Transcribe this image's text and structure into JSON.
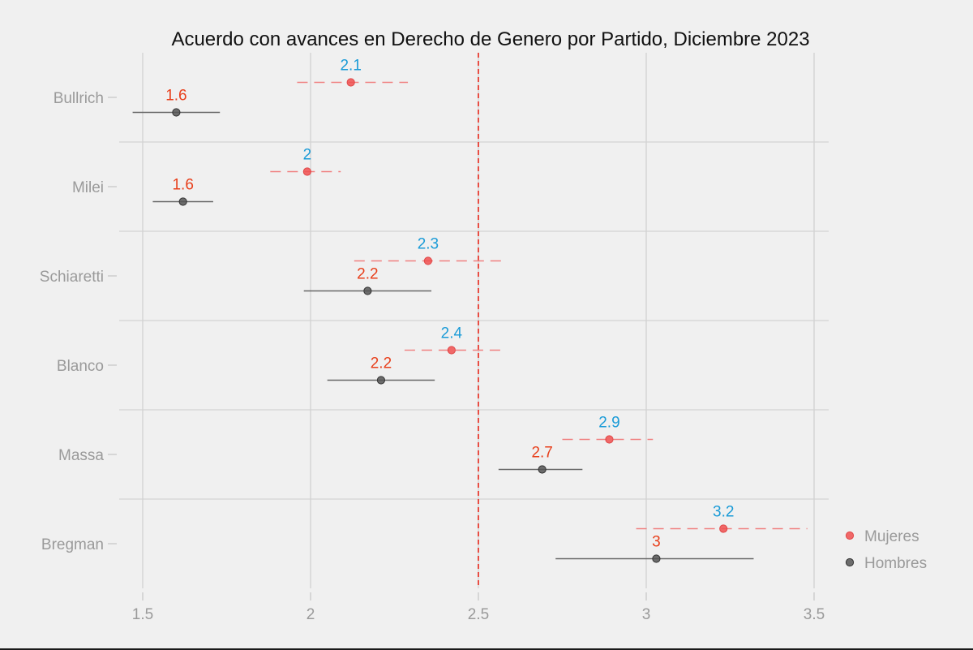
{
  "chart_data": {
    "type": "scatter",
    "title": "Acuerdo con avances en Derecho de Genero por Partido, Diciembre 2023",
    "xlabel": "",
    "ylabel": "",
    "xlim": [
      1.43,
      3.55
    ],
    "xticks": [
      1.5,
      2,
      2.5,
      3,
      3.5
    ],
    "xtick_labels": [
      "1.5",
      "2",
      "2.5",
      "3",
      "3.5"
    ],
    "reference_line": 2.5,
    "categories": [
      "Bullrich",
      "Milei",
      "Schiaretti",
      "Blanco",
      "Massa",
      "Bregman"
    ],
    "legend_position": "right",
    "series": [
      {
        "name": "Mujeres",
        "point_color": "#f05050",
        "label_color": "#1a9bd7",
        "line_style": "dashed",
        "values": [
          2.12,
          1.99,
          2.35,
          2.42,
          2.89,
          3.23
        ],
        "ci_low": [
          1.96,
          1.88,
          2.13,
          2.28,
          2.75,
          2.97
        ],
        "ci_high": [
          2.29,
          2.09,
          2.57,
          2.57,
          3.02,
          3.48
        ],
        "labels": [
          "2.1",
          "2",
          "2.3",
          "2.4",
          "2.9",
          "3.2"
        ]
      },
      {
        "name": "Hombres",
        "point_color": "#555555",
        "label_color": "#e8401c",
        "line_style": "solid",
        "values": [
          1.6,
          1.62,
          2.17,
          2.21,
          2.69,
          3.03
        ],
        "ci_low": [
          1.47,
          1.53,
          1.98,
          2.05,
          2.56,
          2.73
        ],
        "ci_high": [
          1.73,
          1.71,
          2.36,
          2.37,
          2.81,
          3.32
        ],
        "labels": [
          "1.6",
          "1.6",
          "2.2",
          "2.2",
          "2.7",
          "3"
        ]
      }
    ]
  }
}
